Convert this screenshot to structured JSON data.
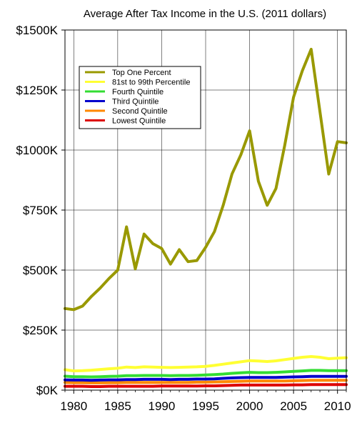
{
  "chart_data": {
    "type": "line",
    "title": "Average After Tax Income in the U.S. (2011 dollars)",
    "xlabel": "",
    "ylabel": "",
    "xlim": [
      1979,
      2011
    ],
    "ylim": [
      0,
      1500000
    ],
    "x_ticks": [
      1980,
      1985,
      1990,
      1995,
      2000,
      2005,
      2010
    ],
    "x_tick_labels": [
      "1980",
      "1985",
      "1990",
      "1995",
      "2000",
      "2005",
      "2010"
    ],
    "y_ticks": [
      0,
      250000,
      500000,
      750000,
      1000000,
      1250000,
      1500000
    ],
    "y_tick_labels": [
      "$0K",
      "$250K",
      "$500K",
      "$750K",
      "$1000K",
      "$1250K",
      "$1500K"
    ],
    "grid": true,
    "legend_position": "top-left",
    "x": [
      1979,
      1980,
      1981,
      1982,
      1983,
      1984,
      1985,
      1986,
      1987,
      1988,
      1989,
      1990,
      1991,
      1992,
      1993,
      1994,
      1995,
      1996,
      1997,
      1998,
      1999,
      2000,
      2001,
      2002,
      2003,
      2004,
      2005,
      2006,
      2007,
      2008,
      2009,
      2010,
      2011
    ],
    "series": [
      {
        "name": "Top One Percent",
        "color": "#999900",
        "values": [
          340000,
          335000,
          350000,
          390000,
          425000,
          465000,
          500000,
          680000,
          505000,
          650000,
          610000,
          590000,
          525000,
          585000,
          535000,
          540000,
          595000,
          660000,
          770000,
          900000,
          980000,
          1080000,
          870000,
          770000,
          840000,
          1020000,
          1220000,
          1330000,
          1420000,
          1160000,
          900000,
          1035000,
          1030000
        ]
      },
      {
        "name": "81st to 99th Percentile",
        "color": "#ffff33",
        "values": [
          85000,
          80000,
          81000,
          83000,
          86000,
          89000,
          91000,
          96000,
          94000,
          97000,
          96000,
          95000,
          94000,
          95000,
          96000,
          97000,
          99000,
          103000,
          108000,
          113000,
          118000,
          123000,
          121000,
          119000,
          122000,
          127000,
          132000,
          137000,
          140000,
          137000,
          131000,
          133000,
          135000
        ]
      },
      {
        "name": "Fourth Quintile",
        "color": "#33dd33",
        "values": [
          58000,
          56000,
          56000,
          55000,
          56000,
          57000,
          58000,
          60000,
          60000,
          61000,
          61000,
          61000,
          60000,
          61000,
          61000,
          62000,
          63000,
          65000,
          67000,
          70000,
          72000,
          74000,
          73000,
          73000,
          74000,
          76000,
          78000,
          80000,
          82000,
          82000,
          81000,
          81000,
          81000
        ]
      },
      {
        "name": "Third Quintile",
        "color": "#0000cc",
        "values": [
          43000,
          42000,
          42000,
          41000,
          42000,
          43000,
          43000,
          44000,
          44000,
          45000,
          45000,
          45000,
          44000,
          45000,
          45000,
          46000,
          46000,
          47000,
          49000,
          51000,
          52000,
          53000,
          53000,
          53000,
          53000,
          54000,
          55000,
          56000,
          57000,
          57000,
          57000,
          57000,
          57000
        ]
      },
      {
        "name": "Second Quintile",
        "color": "#ff8800",
        "values": [
          32000,
          31000,
          31000,
          30000,
          30000,
          31000,
          31000,
          32000,
          32000,
          32000,
          32000,
          32000,
          32000,
          32000,
          32000,
          33000,
          33000,
          34000,
          35000,
          36000,
          37000,
          38000,
          38000,
          38000,
          38000,
          38000,
          39000,
          40000,
          41000,
          41000,
          41000,
          41000,
          41000
        ]
      },
      {
        "name": "Lowest Quintile",
        "color": "#dd0000",
        "values": [
          16000,
          16000,
          16000,
          15000,
          15000,
          16000,
          16000,
          16000,
          16000,
          16000,
          16000,
          17000,
          17000,
          17000,
          17000,
          17000,
          18000,
          18000,
          19000,
          20000,
          21000,
          21000,
          21000,
          21000,
          21000,
          21000,
          22000,
          22000,
          23000,
          23000,
          23000,
          23000,
          23000
        ]
      }
    ]
  }
}
